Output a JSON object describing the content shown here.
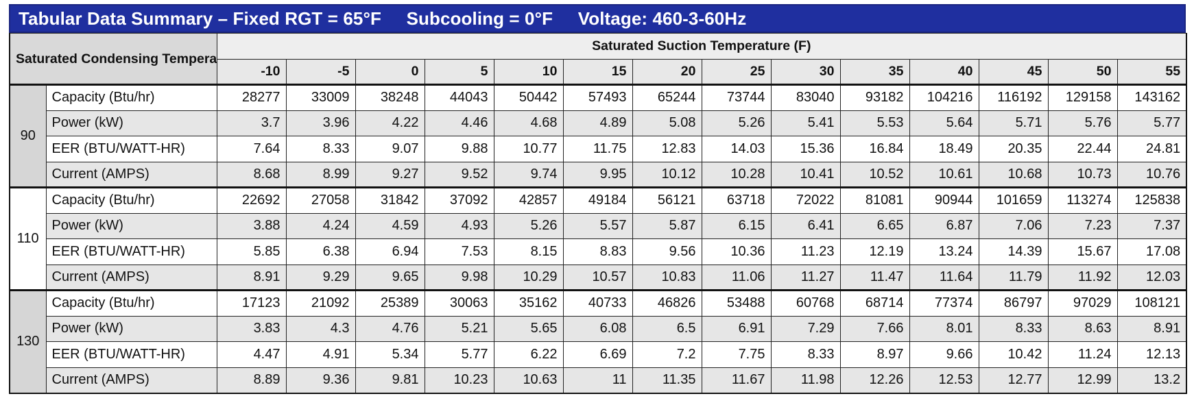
{
  "title": {
    "main": "Tabular Data Summary – Fixed RGT = 65°F",
    "subcooling": "Subcooling = 0°F",
    "voltage": "Voltage: 460-3-60Hz"
  },
  "header": {
    "left_label": "Saturated Condensing Temperature (F)",
    "top_label": "Saturated Suction Temperature (F)",
    "columns": [
      "-10",
      "-5",
      "0",
      "5",
      "10",
      "15",
      "20",
      "25",
      "30",
      "35",
      "40",
      "45",
      "50",
      "55"
    ]
  },
  "groups": [
    {
      "temp": "90",
      "rows": [
        {
          "label": "Capacity (Btu/hr)",
          "values": [
            "28277",
            "33009",
            "38248",
            "44043",
            "50442",
            "57493",
            "65244",
            "73744",
            "83040",
            "93182",
            "104216",
            "116192",
            "129158",
            "143162"
          ]
        },
        {
          "label": "Power (kW)",
          "values": [
            "3.7",
            "3.96",
            "4.22",
            "4.46",
            "4.68",
            "4.89",
            "5.08",
            "5.26",
            "5.41",
            "5.53",
            "5.64",
            "5.71",
            "5.76",
            "5.77"
          ]
        },
        {
          "label": "EER (BTU/WATT-HR)",
          "values": [
            "7.64",
            "8.33",
            "9.07",
            "9.88",
            "10.77",
            "11.75",
            "12.83",
            "14.03",
            "15.36",
            "16.84",
            "18.49",
            "20.35",
            "22.44",
            "24.81"
          ]
        },
        {
          "label": "Current (AMPS)",
          "values": [
            "8.68",
            "8.99",
            "9.27",
            "9.52",
            "9.74",
            "9.95",
            "10.12",
            "10.28",
            "10.41",
            "10.52",
            "10.61",
            "10.68",
            "10.73",
            "10.76"
          ]
        }
      ]
    },
    {
      "temp": "110",
      "rows": [
        {
          "label": "Capacity (Btu/hr)",
          "values": [
            "22692",
            "27058",
            "31842",
            "37092",
            "42857",
            "49184",
            "56121",
            "63718",
            "72022",
            "81081",
            "90944",
            "101659",
            "113274",
            "125838"
          ]
        },
        {
          "label": "Power (kW)",
          "values": [
            "3.88",
            "4.24",
            "4.59",
            "4.93",
            "5.26",
            "5.57",
            "5.87",
            "6.15",
            "6.41",
            "6.65",
            "6.87",
            "7.06",
            "7.23",
            "7.37"
          ]
        },
        {
          "label": "EER (BTU/WATT-HR)",
          "values": [
            "5.85",
            "6.38",
            "6.94",
            "7.53",
            "8.15",
            "8.83",
            "9.56",
            "10.36",
            "11.23",
            "12.19",
            "13.24",
            "14.39",
            "15.67",
            "17.08"
          ]
        },
        {
          "label": "Current (AMPS)",
          "values": [
            "8.91",
            "9.29",
            "9.65",
            "9.98",
            "10.29",
            "10.57",
            "10.83",
            "11.06",
            "11.27",
            "11.47",
            "11.64",
            "11.79",
            "11.92",
            "12.03"
          ]
        }
      ]
    },
    {
      "temp": "130",
      "rows": [
        {
          "label": "Capacity (Btu/hr)",
          "values": [
            "17123",
            "21092",
            "25389",
            "30063",
            "35162",
            "40733",
            "46826",
            "53488",
            "60768",
            "68714",
            "77374",
            "86797",
            "97029",
            "108121"
          ]
        },
        {
          "label": "Power (kW)",
          "values": [
            "3.83",
            "4.3",
            "4.76",
            "5.21",
            "5.65",
            "6.08",
            "6.5",
            "6.91",
            "7.29",
            "7.66",
            "8.01",
            "8.33",
            "8.63",
            "8.91"
          ]
        },
        {
          "label": "EER (BTU/WATT-HR)",
          "values": [
            "4.47",
            "4.91",
            "5.34",
            "5.77",
            "6.22",
            "6.69",
            "7.2",
            "7.75",
            "8.33",
            "8.97",
            "9.66",
            "10.42",
            "11.24",
            "12.13"
          ]
        },
        {
          "label": "Current (AMPS)",
          "values": [
            "8.89",
            "9.36",
            "9.81",
            "10.23",
            "10.63",
            "11",
            "11.35",
            "11.67",
            "11.98",
            "12.26",
            "12.53",
            "12.77",
            "12.99",
            "13.2"
          ]
        }
      ]
    }
  ],
  "colors": {
    "title_bg": "#1f2f9f",
    "title_text": "#ffffff",
    "row_shade": "#e6e6e6",
    "group_shade": "#d6d6d6"
  }
}
